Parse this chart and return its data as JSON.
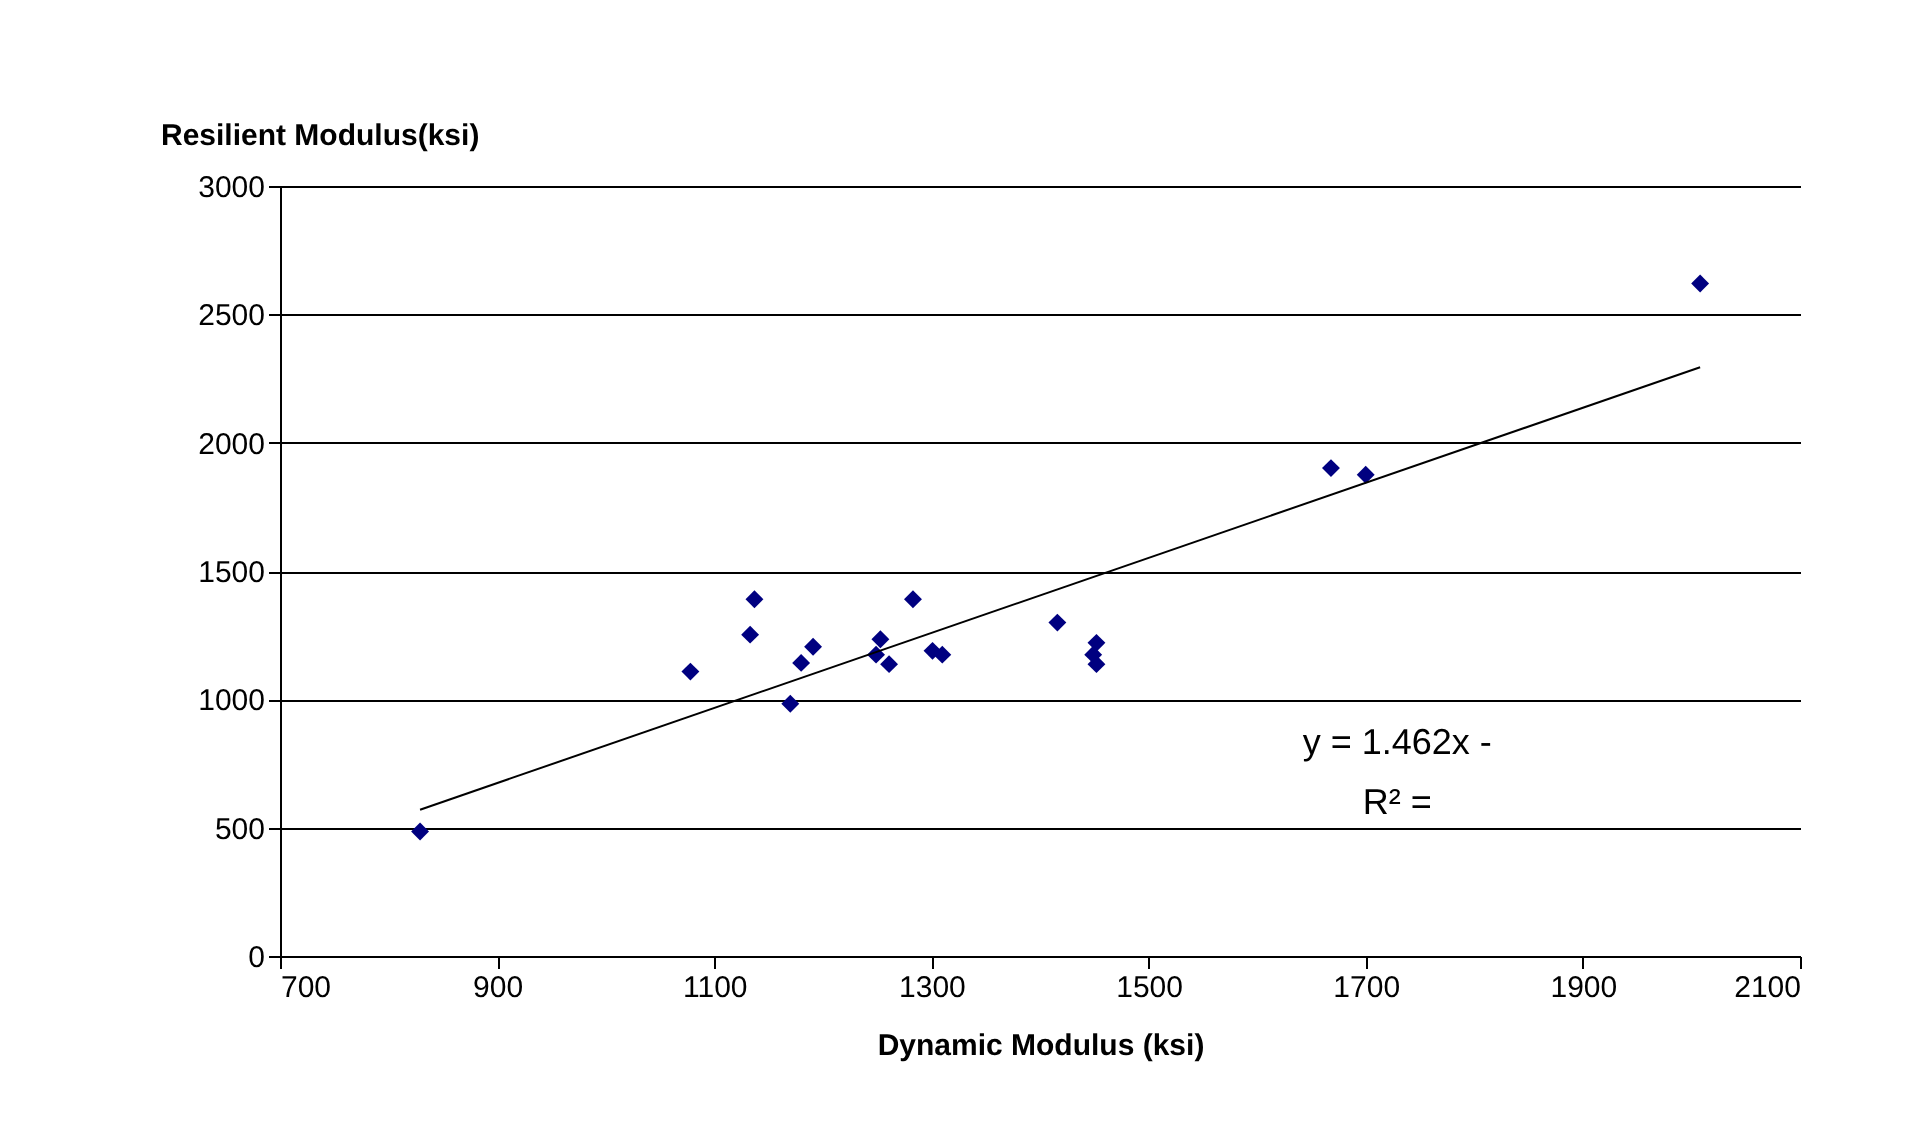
{
  "chart_data": {
    "type": "scatter",
    "xlabel": "Dynamic Modulus (ksi)",
    "ylabel": "Resilient Modulus(ksi)",
    "xlim": [
      700,
      2100
    ],
    "xticks": [
      700,
      900,
      1100,
      1300,
      1500,
      1700,
      1900,
      2100
    ],
    "ylim": [
      0,
      3000
    ],
    "yticks": [
      0,
      500,
      1000,
      1500,
      2000,
      2500,
      3000
    ],
    "grid": "y",
    "marker": "diamond",
    "annotations": [
      "y = 1.462x -",
      "R² ="
    ],
    "series": [
      {
        "color": "#000080",
        "x": [
          829,
          1078,
          1137,
          1133,
          1170,
          1191,
          1180,
          1253,
          1249,
          1261,
          1283,
          1301,
          1310,
          1416,
          1452,
          1449,
          1452,
          1668,
          1700,
          2008
        ],
        "values": [
          485,
          1108,
          1390,
          1252,
          983,
          1205,
          1142,
          1234,
          1174,
          1137,
          1390,
          1189,
          1174,
          1299,
          1220,
          1174,
          1137,
          1901,
          1875,
          2620
        ]
      },
      {
        "type": "line",
        "color": "#000000",
        "marker": "none",
        "x": [
          829,
          2008
        ],
        "values": [
          570,
          2294
        ]
      }
    ]
  }
}
